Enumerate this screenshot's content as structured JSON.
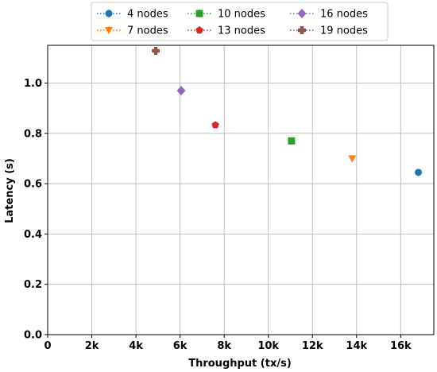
{
  "chart_data": {
    "type": "scatter",
    "xlabel": "Throughput (tx/s)",
    "ylabel": "Latency (s)",
    "xlim": [
      0,
      17500
    ],
    "ylim": [
      0,
      1.15
    ],
    "x_ticks": [
      0,
      2000,
      4000,
      6000,
      8000,
      10000,
      12000,
      14000,
      16000
    ],
    "x_tick_labels": [
      "0",
      "2k",
      "4k",
      "6k",
      "8k",
      "10k",
      "12k",
      "14k",
      "16k"
    ],
    "y_ticks": [
      0.0,
      0.2,
      0.4,
      0.6,
      0.8,
      1.0
    ],
    "y_tick_labels": [
      "0.0",
      "0.2",
      "0.4",
      "0.6",
      "0.8",
      "1.0"
    ],
    "grid": true,
    "legend_position": "top-center",
    "series": [
      {
        "name": "4 nodes",
        "x": 16800,
        "y": 0.645,
        "color": "#1f77b4",
        "marker": "circle"
      },
      {
        "name": "7 nodes",
        "x": 13800,
        "y": 0.7,
        "color": "#ff7f0e",
        "marker": "triangle-down"
      },
      {
        "name": "10 nodes",
        "x": 11050,
        "y": 0.77,
        "color": "#2ca02c",
        "marker": "square"
      },
      {
        "name": "13 nodes",
        "x": 7600,
        "y": 0.833,
        "color": "#d62728",
        "marker": "pentagon"
      },
      {
        "name": "16 nodes",
        "x": 6050,
        "y": 0.97,
        "color": "#9467bd",
        "marker": "diamond"
      },
      {
        "name": "19 nodes",
        "x": 4900,
        "y": 1.128,
        "color": "#8c564b",
        "marker": "plus"
      }
    ]
  }
}
